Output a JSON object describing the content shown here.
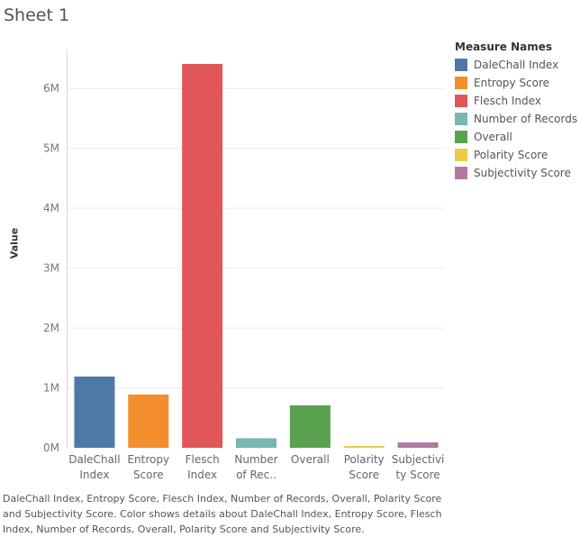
{
  "sheet": {
    "title": "Sheet 1"
  },
  "legend": {
    "title": "Measure Names",
    "items": [
      {
        "label": "DaleChall Index",
        "color": "#4e79a7"
      },
      {
        "label": "Entropy Score",
        "color": "#f28e2b"
      },
      {
        "label": "Flesch Index",
        "color": "#e15759"
      },
      {
        "label": "Number of Records",
        "color": "#76b7b2"
      },
      {
        "label": "Overall",
        "color": "#59a14f"
      },
      {
        "label": "Polarity Score",
        "color": "#edc948"
      },
      {
        "label": "Subjectivity Score",
        "color": "#b07aa1"
      }
    ]
  },
  "caption": "DaleChall Index, Entropy Score, Flesch Index, Number of Records, Overall, Polarity Score and Subjectivity Score.  Color shows details about DaleChall Index, Entropy Score, Flesch Index, Number of Records, Overall, Polarity Score and Subjectivity Score.",
  "chart_data": {
    "type": "bar",
    "ylabel": "Value",
    "xlabel": "",
    "categories": [
      "DaleChall Index",
      "Entropy Score",
      "Flesch Index",
      "Number of Records",
      "Overall",
      "Polarity Score",
      "Subjectivity Score"
    ],
    "tick_labels": [
      [
        "DaleChall",
        "Index"
      ],
      [
        "Entropy",
        "Score"
      ],
      [
        "Flesch",
        "Index"
      ],
      [
        "Number",
        "of Rec.."
      ],
      [
        "Overall"
      ],
      [
        "Polarity",
        "Score"
      ],
      [
        "Subjectivi",
        "ty Score"
      ]
    ],
    "values": [
      1190000,
      890000,
      6410000,
      160000,
      710000,
      30000,
      90000
    ],
    "colors": [
      "#4e79a7",
      "#f28e2b",
      "#e15759",
      "#76b7b2",
      "#59a14f",
      "#edc948",
      "#b07aa1"
    ],
    "yticks": [
      0,
      1000000,
      2000000,
      3000000,
      4000000,
      5000000,
      6000000
    ],
    "ytick_labels": [
      "0M",
      "1M",
      "2M",
      "3M",
      "4M",
      "5M",
      "6M"
    ],
    "ylim": [
      0,
      6500000
    ],
    "grid": true
  }
}
